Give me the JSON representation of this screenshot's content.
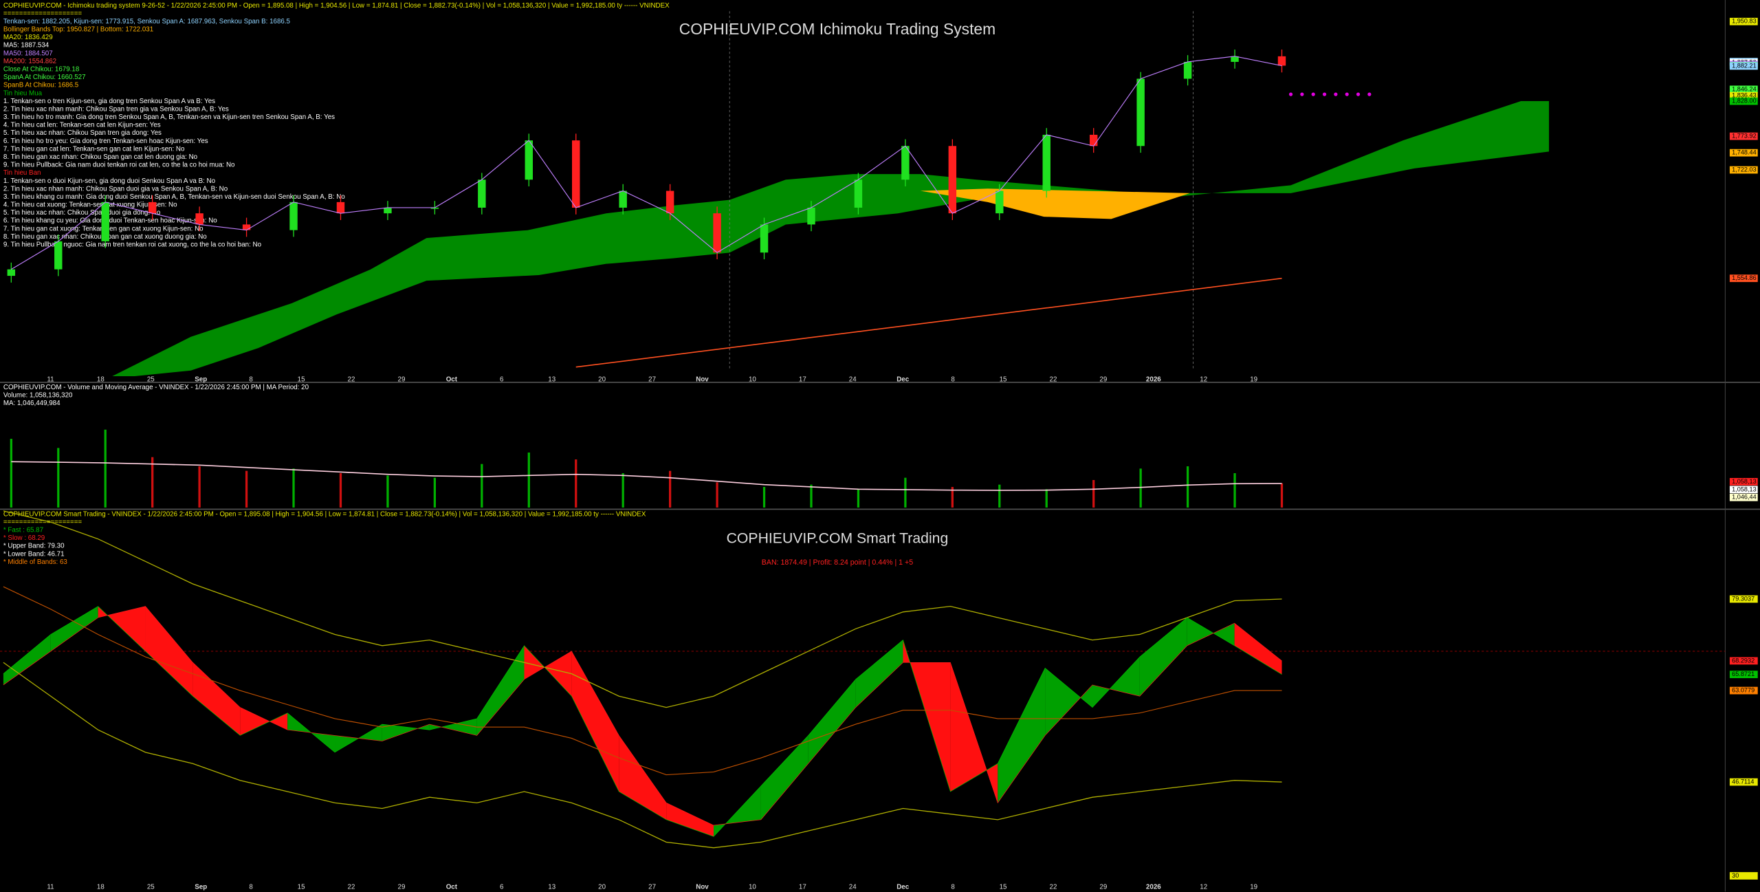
{
  "price_pane": {
    "title": "COPHIEUVIP.COM Ichimoku Trading System",
    "legend": [
      {
        "text": "COPHIEUVIP.COM - Ichimoku trading system 9-26-52 - 1/22/2026 2:45:00 PM - Open = 1,895.08 | High = 1,904.56 | Low = 1,874.81 | Close = 1,882.73(-0.14%) | Vol = 1,058,136,320 | Value = 1,992,185.00 ty ------ VNINDEX",
        "color": "#e8e800"
      },
      {
        "text": "====================",
        "color": "#e8e800"
      },
      {
        "text": "Tenkan-sen: 1882.205, Kijun-sen: 1773.915, Senkou Span A: 1687.963, Senkou Span B: 1686.5",
        "color": "#8fd3ff"
      },
      {
        "text": "Bollinger Bands Top: 1950.827 | Bottom: 1722.031",
        "color": "#ffb000"
      },
      {
        "text": "MA20: 1836.429",
        "color": "#e8e800"
      },
      {
        "text": "MA5: 1887.534",
        "color": "#ffffff"
      },
      {
        "text": "MA50: 1884.507",
        "color": "#c080ff"
      },
      {
        "text": "MA200: 1554.862",
        "color": "#ff4040"
      },
      {
        "text": "Close At Chikou: 1679.18",
        "color": "#40ff40"
      },
      {
        "text": "SpanA At Chikou: 1660.527",
        "color": "#40ff40"
      },
      {
        "text": "SpanB At Chikou: 1686.5",
        "color": "#ffb000"
      },
      {
        "text": "Tin hieu Mua",
        "color": "#00c000"
      },
      {
        "text": "1. Tenkan-sen o tren Kijun-sen, gia dong tren Senkou Span A va B: Yes",
        "color": "#ffffff"
      },
      {
        "text": "2. Tin hieu xac nhan manh: Chikou Span tren gia va Senkou Span A, B: Yes",
        "color": "#ffffff"
      },
      {
        "text": "3. Tin hieu ho tro manh: Gia dong tren Senkou Span A, B, Tenkan-sen va Kijun-sen tren Senkou Span A, B: Yes",
        "color": "#ffffff"
      },
      {
        "text": "4. Tin hieu cat len: Tenkan-sen cat len Kijun-sen: Yes",
        "color": "#ffffff"
      },
      {
        "text": "5. Tin hieu xac nhan: Chikou Span tren gia dong: Yes",
        "color": "#ffffff"
      },
      {
        "text": "6. Tin hieu ho tro yeu: Gia dong tren Tenkan-sen hoac Kijun-sen: Yes",
        "color": "#ffffff"
      },
      {
        "text": "7. Tin hieu gan cat len: Tenkan-sen gan cat len Kijun-sen: No",
        "color": "#ffffff"
      },
      {
        "text": "8. Tin hieu gan xac nhan: Chikou Span gan cat len duong gia: No",
        "color": "#ffffff"
      },
      {
        "text": "9. Tin hieu Pullback: Gia nam duoi tenkan roi cat len, co the la co hoi mua: No",
        "color": "#ffffff"
      },
      {
        "text": "Tin hieu Ban",
        "color": "#ff2020"
      },
      {
        "text": "1. Tenkan-sen o duoi Kijun-sen, gia dong duoi Senkou Span A va B: No",
        "color": "#ffffff"
      },
      {
        "text": "2. Tin hieu xac nhan manh: Chikou Span duoi gia va Senkou Span A, B: No",
        "color": "#ffffff"
      },
      {
        "text": "3. Tin hieu khang cu manh: Gia dong duoi Senkou Span A, B, Tenkan-sen va Kijun-sen duoi Senkou Span A, B: No",
        "color": "#ffffff"
      },
      {
        "text": "4. Tin hieu cat xuong: Tenkan-sen cat xuong Kijun-sen: No",
        "color": "#ffffff"
      },
      {
        "text": "5. Tin hieu xac nhan: Chikou Span duoi gia dong: No",
        "color": "#ffffff"
      },
      {
        "text": "6. Tin hieu khang cu yeu: Gia dong duoi Tenkan-sen hoac Kijun-sen: No",
        "color": "#ffffff"
      },
      {
        "text": "7. Tin hieu gan cat xuong: Tenkan-sen gan cat xuong Kijun-sen: No",
        "color": "#ffffff"
      },
      {
        "text": "8. Tin hieu gan xac nhan: Chikou Span gan cat xuong duong gia: No",
        "color": "#ffffff"
      },
      {
        "text": "9. Tin hieu Pullback nguoc: Gia nam tren tenkan roi cat xuong, co the la co hoi ban: No",
        "color": "#ffffff"
      }
    ],
    "ylim": [
      1404,
      1984
    ],
    "close": [
      1568.7,
      1611.9,
      1672.4,
      1655.1,
      1637.9,
      1629.2,
      1672.4,
      1655.1,
      1663.8,
      1663.8,
      1707.0,
      1767.5,
      1663.8,
      1689.7,
      1655.1,
      1594.6,
      1637.9,
      1663.8,
      1707.0,
      1758.9,
      1655.1,
      1689.7,
      1776.2,
      1758.9,
      1862.6,
      1888.6,
      1897.2,
      1882.73
    ],
    "ma200": [
      null,
      null,
      null,
      null,
      null,
      null,
      null,
      null,
      null,
      null,
      null,
      null,
      1418.0,
      1427.1,
      1436.2,
      1445.4,
      1454.5,
      1463.6,
      1472.7,
      1481.8,
      1491.0,
      1500.1,
      1509.2,
      1518.3,
      1527.4,
      1536.6,
      1545.7,
      1554.86
    ],
    "price_labels": [
      {
        "value": 1950.83,
        "label": "1,950.83",
        "color": "#e8e800"
      },
      {
        "value": 1889.06,
        "label": "1,889.06",
        "color": "#8fd3ff"
      },
      {
        "value": 1887.53,
        "label": "1,887.53",
        "color": "#ffffff"
      },
      {
        "value": 1884.51,
        "label": "1,884.51",
        "color": "#c080ff"
      },
      {
        "value": 1882.73,
        "label": "1,882.73",
        "color": "#40ff40"
      },
      {
        "value": 1882.21,
        "label": "1,882.21",
        "color": "#8fd3ff"
      },
      {
        "value": 1846.24,
        "label": "1,846.24",
        "color": "#40ff40"
      },
      {
        "value": 1836.43,
        "label": "1,836.43",
        "color": "#e8e800"
      },
      {
        "value": 1828.0,
        "label": "1,828.00",
        "color": "#00c000"
      },
      {
        "value": 1773.92,
        "label": "1,773.92",
        "color": "#ff3030"
      },
      {
        "value": 1748.44,
        "label": "1,748.44",
        "color": "#ffb000"
      },
      {
        "value": 1722.03,
        "label": "1,722.03",
        "color": "#ffb000"
      },
      {
        "value": 1554.86,
        "label": "1,554.86",
        "color": "#ff5020"
      }
    ]
  },
  "x_labels": [
    "11",
    "18",
    "25",
    "Sep",
    "8",
    "15",
    "22",
    "29",
    "Oct",
    "6",
    "13",
    "20",
    "27",
    "Nov",
    "10",
    "17",
    "24",
    "Dec",
    "8",
    "15",
    "22",
    "29",
    "2026",
    "12",
    "19"
  ],
  "volume_pane": {
    "legend": [
      {
        "text": "COPHIEUVIP.COM - Volume and Moving Average - VNINDEX - 1/22/2026 2:45:00 PM | MA Period: 20",
        "color": "#ffffff"
      },
      {
        "text": "Volume: 1,058,136,320",
        "color": "#ffffff"
      },
      {
        "text": "MA: 1,046,449,984",
        "color": "#ffffff"
      }
    ],
    "ylim": [
      0,
      5000000000
    ],
    "volume": [
      3000000000,
      2600000000,
      3400000000,
      2200000000,
      1800000000,
      1600000000,
      1700000000,
      1500000000,
      1400000000,
      1300000000,
      1900000000,
      2400000000,
      2100000000,
      1500000000,
      1600000000,
      1100000000,
      900000000,
      1000000000,
      800000000,
      1300000000,
      900000000,
      1000000000,
      800000000,
      1200000000,
      1700000000,
      1800000000,
      1500000000,
      1058136320
    ],
    "ma": [
      2000000000,
      1980000000,
      1950000000,
      1900000000,
      1850000000,
      1750000000,
      1650000000,
      1550000000,
      1450000000,
      1380000000,
      1350000000,
      1400000000,
      1450000000,
      1400000000,
      1300000000,
      1150000000,
      1000000000,
      900000000,
      800000000,
      780000000,
      760000000,
      750000000,
      760000000,
      800000000,
      880000000,
      980000000,
      1040000000,
      1046449984
    ],
    "labels": [
      {
        "text": "1,058,13",
        "color": "#ff2020"
      },
      {
        "text": "1,058,13",
        "color": "#ffffff"
      },
      {
        "text": "1,046,44",
        "color": "#ffffcc"
      }
    ]
  },
  "osc_pane": {
    "title": "COPHIEUVIP.COM Smart Trading",
    "subtitle": "BAN: 1874.49 | Profit: 8.24 point | 0.44% | 1 +5",
    "legend": [
      {
        "text": "COPHIEUVIP.COM Smart Trading - VNINDEX - 1/22/2026 2:45:00 PM - Open = 1,895.08 | High = 1,904.56 | Low = 1,874.81 | Close = 1,882.73(-0.14%) | Vol = 1,058,136,320 | Value = 1,992,185.00 ty ------ VNINDEX",
        "color": "#e8e800"
      },
      {
        "text": "====================",
        "color": "#e8e800"
      },
      {
        "text": "* Fast :  65.87",
        "color": "#00c000"
      },
      {
        "text": "* Slow :  68.29",
        "color": "#ff2020"
      },
      {
        "text": "* Upper Band:   79.30",
        "color": "#ffffff"
      },
      {
        "text": "* Lower Band:   46.71",
        "color": "#ffffff"
      },
      {
        "text": "* Middle of Bands:    63",
        "color": "#ff8000"
      }
    ],
    "ylim": [
      29,
      95
    ],
    "fast": [
      66,
      73,
      78,
      70,
      62,
      55,
      59,
      52,
      57,
      56,
      58,
      71,
      62,
      45,
      40,
      37,
      46,
      55,
      65,
      72,
      45,
      50,
      67,
      60,
      69,
      76,
      71,
      65.87
    ],
    "slow": [
      64,
      70,
      76,
      78,
      68,
      60,
      56,
      55,
      54,
      57,
      55,
      65,
      70,
      55,
      43,
      39,
      40,
      50,
      60,
      68,
      68,
      43,
      55,
      64,
      62,
      71,
      75,
      68.29
    ],
    "upper": [
      95,
      93,
      90,
      86,
      82,
      79,
      76,
      73,
      71,
      72,
      70,
      68,
      66,
      62,
      60,
      62,
      66,
      70,
      74,
      77,
      78,
      76,
      74,
      72,
      73,
      76,
      79,
      79.3
    ],
    "lower": [
      68,
      62,
      56,
      52,
      50,
      47,
      45,
      43,
      42,
      44,
      43,
      45,
      43,
      40,
      36,
      35,
      36,
      38,
      40,
      42,
      41,
      40,
      42,
      44,
      45,
      46,
      47,
      46.71
    ],
    "axis_labels": [
      {
        "value": 79.3037,
        "label": "79.3037",
        "color": "#e8e800"
      },
      {
        "value": 68.29,
        "label": "68.2932",
        "color": "#ff2020"
      },
      {
        "value": 65.8721,
        "label": "65.8721",
        "color": "#00c000"
      },
      {
        "value": 63,
        "label": "63.0779",
        "color": "#ff8000"
      },
      {
        "value": 46.7114,
        "label": "46.7114",
        "color": "#e8e800"
      },
      {
        "value": 30,
        "label": "30",
        "color": "#e8e800"
      }
    ]
  }
}
